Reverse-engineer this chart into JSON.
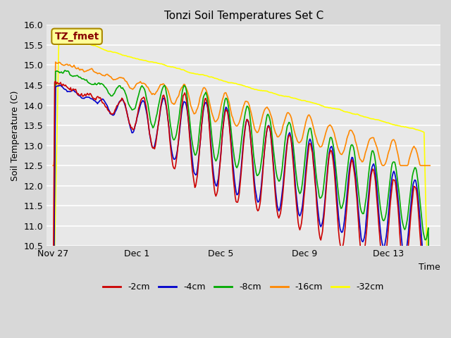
{
  "title": "Tonzi Soil Temperatures Set C",
  "xlabel": "Time",
  "ylabel": "Soil Temperature (C)",
  "ylim": [
    10.5,
    16.0
  ],
  "yticks": [
    10.5,
    11.0,
    11.5,
    12.0,
    12.5,
    13.0,
    13.5,
    14.0,
    14.5,
    15.0,
    15.5,
    16.0
  ],
  "background_color": "#e8e8e8",
  "plot_bg_color": "#e8e8e8",
  "series_colors": {
    "-2cm": "#cc0000",
    "-4cm": "#0000cc",
    "-8cm": "#00aa00",
    "-16cm": "#ff8800",
    "-32cm": "#ffff00"
  },
  "x_tick_labels": [
    "Nov 27",
    "Dec 1",
    "Dec 5",
    "Dec 9",
    "Dec 13"
  ],
  "annotation_text": "TZ_fmet",
  "annotation_bg": "#ffff99",
  "annotation_border": "#aa8800",
  "annotation_color": "#880000",
  "grid_color": "#ffffff",
  "line_width": 1.2
}
